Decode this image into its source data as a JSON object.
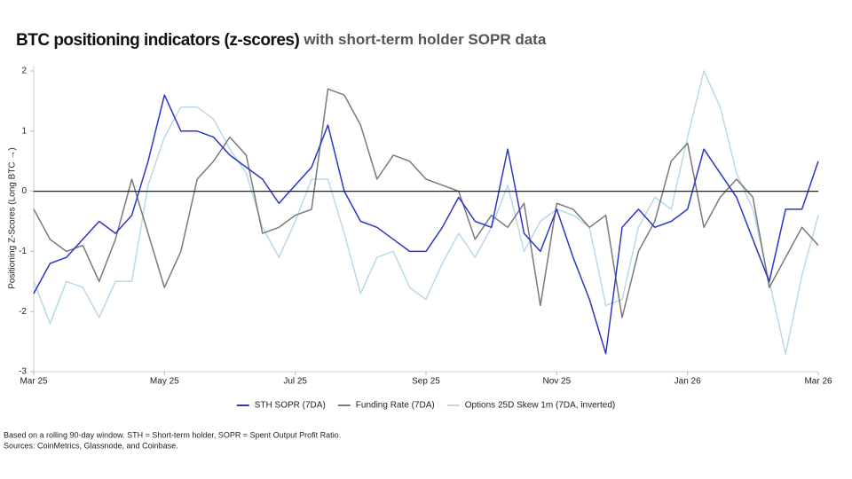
{
  "chart_data": {
    "type": "line",
    "title": "BTC positioning indicators (z-scores)",
    "subtitle": "with short-term holder SOPR data",
    "y_label": "Positioning Z-Scores (Long BTC →)",
    "x": [
      0,
      0.25,
      0.5,
      0.75,
      1,
      1.25,
      1.5,
      1.75,
      2,
      2.25,
      2.5,
      2.75,
      3,
      3.25,
      3.5,
      3.75,
      4,
      4.25,
      4.5,
      4.75,
      5,
      5.25,
      5.5,
      5.75,
      6,
      6.25,
      6.5,
      6.75,
      7,
      7.25,
      7.5,
      7.75,
      8,
      8.25,
      8.5,
      8.75,
      9,
      9.25,
      9.5,
      9.75,
      10,
      10.25,
      10.5,
      10.75,
      11,
      11.25,
      11.5,
      11.75,
      12
    ],
    "series": [
      {
        "name": "STH SOPR (7DA)",
        "color": "#2b35c8",
        "values": [
          -1.7,
          -1.2,
          -1.1,
          -0.8,
          -0.5,
          -0.7,
          -0.4,
          0.5,
          1.6,
          1.0,
          1.0,
          0.9,
          0.6,
          0.4,
          0.2,
          -0.2,
          0.1,
          0.4,
          1.1,
          0.0,
          -0.5,
          -0.6,
          -0.8,
          -1.0,
          -1.0,
          -0.6,
          -0.1,
          -0.5,
          -0.6,
          0.7,
          -0.7,
          -1.0,
          -0.3,
          -1.1,
          -1.8,
          -2.7,
          -0.6,
          -0.3,
          -0.6,
          -0.5,
          -0.3,
          0.7,
          0.3,
          -0.1,
          -0.8,
          -1.5,
          -0.3,
          -0.3,
          0.5
        ]
      },
      {
        "name": "Funding Rate (7DA)",
        "color": "#7a7a7a",
        "values": [
          -0.3,
          -0.8,
          -1.0,
          -0.9,
          -1.5,
          -0.8,
          0.2,
          -0.7,
          -1.6,
          -1.0,
          0.2,
          0.5,
          0.9,
          0.6,
          -0.7,
          -0.6,
          -0.4,
          -0.3,
          1.7,
          1.6,
          1.1,
          0.2,
          0.6,
          0.5,
          0.2,
          0.1,
          0.0,
          -0.8,
          -0.4,
          -0.6,
          -0.2,
          -1.9,
          -0.2,
          -0.3,
          -0.6,
          -0.4,
          -2.1,
          -1.0,
          -0.5,
          0.5,
          0.8,
          -0.6,
          -0.1,
          0.2,
          -0.1,
          -1.6,
          -1.1,
          -0.6,
          -0.9
        ]
      },
      {
        "name": "Options 25D Skew 1m (7DA, inverted)",
        "color": "#b9d9ea",
        "values": [
          -1.5,
          -2.2,
          -1.5,
          -1.6,
          -2.1,
          -1.5,
          -1.5,
          0.1,
          0.9,
          1.4,
          1.4,
          1.2,
          0.7,
          0.3,
          -0.6,
          -1.1,
          -0.5,
          0.2,
          0.2,
          -0.7,
          -1.7,
          -1.1,
          -1.0,
          -1.6,
          -1.8,
          -1.2,
          -0.7,
          -1.1,
          -0.6,
          0.1,
          -1.0,
          -0.5,
          -0.3,
          -0.4,
          -0.6,
          -1.9,
          -1.8,
          -0.6,
          -0.1,
          -0.3,
          0.9,
          2.0,
          1.4,
          0.3,
          -0.3,
          -1.5,
          -2.7,
          -1.4,
          -0.4
        ]
      }
    ],
    "xlim": [
      0,
      12
    ],
    "xticks": [
      {
        "value": 0,
        "label": "Mar 25"
      },
      {
        "value": 2,
        "label": "May 25"
      },
      {
        "value": 4,
        "label": "Jul 25"
      },
      {
        "value": 6,
        "label": "Sep 25"
      },
      {
        "value": 8,
        "label": "Nov 25"
      },
      {
        "value": 10,
        "label": "Jan 26"
      },
      {
        "value": 12,
        "label": "Mar 26"
      }
    ],
    "ylim": [
      -3,
      2
    ],
    "yticks": [
      -3,
      -2,
      -1,
      0,
      1,
      2
    ],
    "grid": false,
    "legend": "bottom",
    "notes": [
      "Based on a rolling 90-day window. STH = Short-term holder, SOPR = Spent Output Profit Ratio.",
      "Sources: CoinMetrics, Glassnode, and Coinbase."
    ]
  }
}
